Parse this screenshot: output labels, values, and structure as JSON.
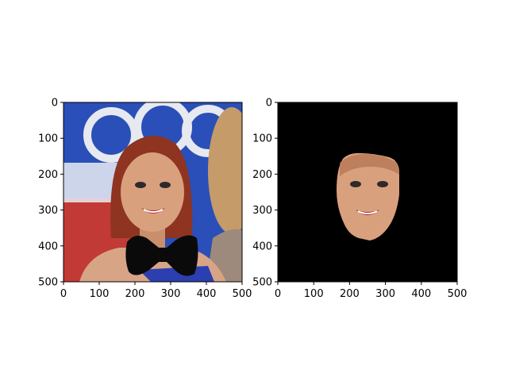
{
  "chart_data": [
    {
      "type": "image",
      "title": "",
      "xlabel": "",
      "ylabel": "",
      "xlim": [
        0,
        500
      ],
      "ylim": [
        500,
        0
      ],
      "x_ticks": [
        0,
        100,
        200,
        300,
        400,
        500
      ],
      "y_ticks": [
        0,
        100,
        200,
        300,
        400,
        500
      ],
      "y_inverted": true,
      "grid": false,
      "content": "photo",
      "overlay": {
        "shape": "bow-tie",
        "color": "#000000",
        "x_range": [
          155,
          370
        ],
        "y_range": [
          365,
          480
        ]
      }
    },
    {
      "type": "image",
      "title": "",
      "xlabel": "",
      "ylabel": "",
      "xlim": [
        0,
        500
      ],
      "ylim": [
        500,
        0
      ],
      "x_ticks": [
        0,
        100,
        200,
        300,
        400,
        500
      ],
      "y_ticks": [
        0,
        100,
        200,
        300,
        400,
        500
      ],
      "y_inverted": true,
      "grid": false,
      "background": "#000000",
      "content": "masked-face",
      "face_region": {
        "x_range": [
          160,
          340
        ],
        "y_range": [
          140,
          380
        ]
      }
    }
  ],
  "colors": {
    "flag_blue": "#2a4fb8",
    "flag_red": "#c23a36",
    "skin": "#d9a07e",
    "hair": "#8e3420",
    "blonde": "#c59b6a",
    "dress_blue": "#2b3fb0",
    "bowtie": "#0a0a0a",
    "mask_bg": "#000000"
  }
}
